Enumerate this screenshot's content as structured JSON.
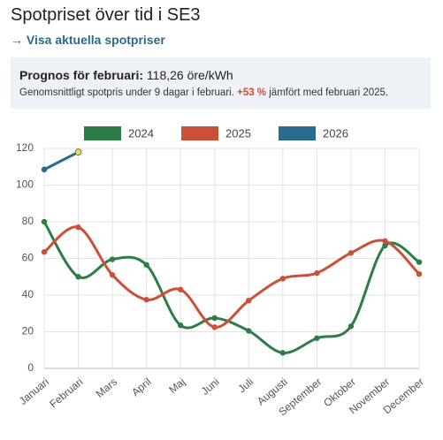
{
  "header": {
    "title": "Spotpriset över tid i SE3",
    "link": "→ Visa aktuella spotpriser"
  },
  "info": {
    "label": "Prognos för februari:",
    "value": "118,26 öre/kWh",
    "text_before": "Genomsnittligt spotpris under 9 dagar i februari.",
    "change": "+53 %",
    "text_after": "jämfört med februari 2025."
  },
  "chart_data": {
    "type": "line",
    "categories": [
      "Januari",
      "Februari",
      "Mars",
      "April",
      "Maj",
      "Juni",
      "Juli",
      "Augusti",
      "September",
      "Oktober",
      "November",
      "December"
    ],
    "series": [
      {
        "name": "2024",
        "color": "#2e7d46",
        "values": [
          80,
          50,
          59.5,
          56.5,
          23.5,
          27.5,
          20.5,
          8.5,
          16.5,
          23,
          67,
          58
        ]
      },
      {
        "name": "2025",
        "color": "#cc4f37",
        "values": [
          63.5,
          77,
          51,
          37.5,
          43,
          22.5,
          37,
          49,
          52,
          63,
          69.5,
          51.5
        ]
      },
      {
        "name": "2026",
        "color": "#2b6a8f",
        "values": [
          108.5,
          118,
          null,
          null,
          null,
          null,
          null,
          null,
          null,
          null,
          null,
          null
        ],
        "last_point_color": "#e6df4c"
      }
    ],
    "ylim": [
      0,
      120
    ],
    "yticks": [
      0,
      20,
      40,
      60,
      80,
      100,
      120
    ],
    "grid": true,
    "legend": "top"
  }
}
